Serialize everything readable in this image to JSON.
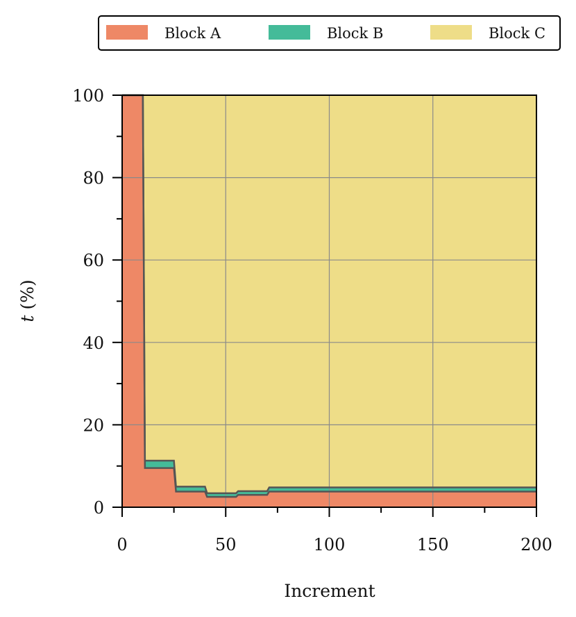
{
  "chart_data": {
    "type": "area",
    "stacked": true,
    "x": [
      0,
      10,
      11,
      25,
      26,
      40,
      41,
      55,
      56,
      70,
      71,
      200
    ],
    "series": [
      {
        "name": "Block A",
        "color": "#ee8866",
        "values": [
          100,
          100,
          9.5,
          9.5,
          3.8,
          3.8,
          2.5,
          2.5,
          3.0,
          3.0,
          3.8,
          3.8
        ]
      },
      {
        "name": "Block B",
        "color": "#44bb99",
        "values": [
          0,
          0,
          1.8,
          1.8,
          1.2,
          1.2,
          0.9,
          0.9,
          0.9,
          0.9,
          1.0,
          1.0
        ]
      },
      {
        "name": "Block C",
        "color": "#eedd88",
        "values": [
          0,
          0,
          88.7,
          88.7,
          95.0,
          95.0,
          96.6,
          96.6,
          96.1,
          96.1,
          95.2,
          95.2
        ]
      }
    ],
    "xlabel": "Increment",
    "ylabel_italic": "t",
    "ylabel_rest": " (%)",
    "xlim": [
      0,
      200
    ],
    "ylim": [
      0,
      100
    ],
    "x_major_ticks": [
      0,
      50,
      100,
      150,
      200
    ],
    "x_minor_ticks": [
      25,
      75,
      125,
      175
    ],
    "y_major_ticks": [
      0,
      20,
      40,
      60,
      80,
      100
    ],
    "y_minor_ticks": [
      10,
      30,
      50,
      70,
      90
    ],
    "x_tick_labels": [
      "0",
      "50",
      "100",
      "150",
      "200"
    ],
    "y_tick_labels": [
      "0",
      "20",
      "40",
      "60",
      "80",
      "100"
    ],
    "grid": true,
    "legend_position": "top"
  }
}
